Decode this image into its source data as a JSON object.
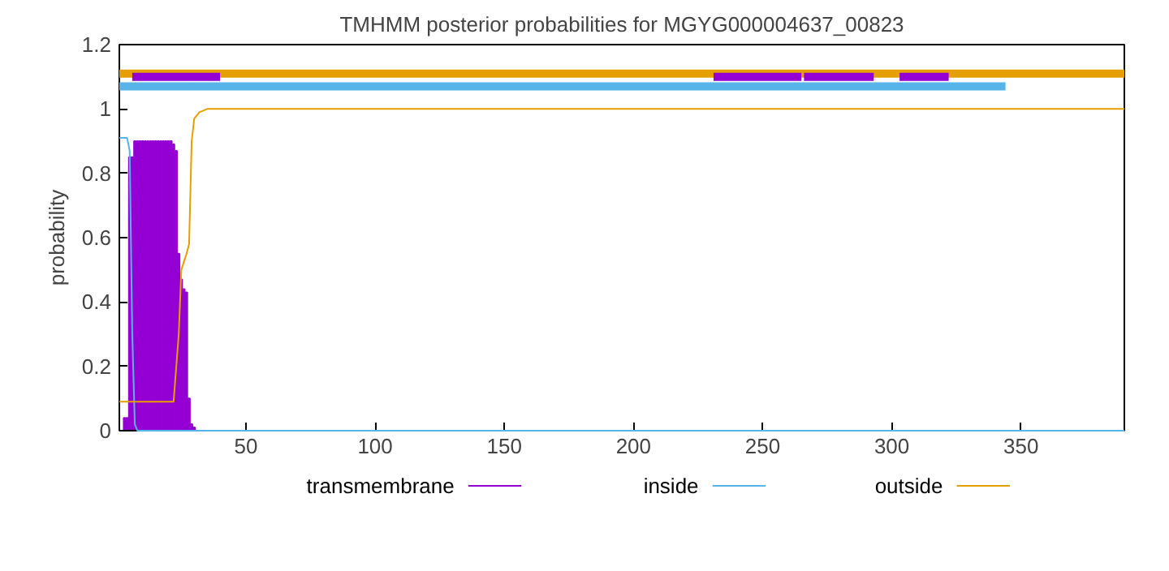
{
  "chart_data": {
    "type": "line",
    "title": "TMHMM posterior probabilities for MGYG000004637_00823",
    "ylabel": "probability",
    "xlim": [
      1,
      390
    ],
    "ylim": [
      0,
      1.2
    ],
    "xticks": [
      50,
      100,
      150,
      200,
      250,
      300,
      350
    ],
    "yticks": [
      0,
      0.2,
      0.4,
      0.6,
      0.8,
      1,
      1.2
    ],
    "legend": "bottom",
    "grid": false,
    "series": [
      {
        "name": "transmembrane",
        "type": "bar",
        "color": "#9400d3",
        "x": [
          3,
          4,
          5,
          6,
          7,
          8,
          9,
          10,
          11,
          12,
          13,
          14,
          15,
          16,
          17,
          18,
          19,
          20,
          21,
          22,
          23,
          24,
          25,
          26,
          27,
          28,
          29,
          30
        ],
        "values": [
          0.04,
          0.04,
          0.85,
          0.85,
          0.9,
          0.9,
          0.9,
          0.9,
          0.9,
          0.9,
          0.9,
          0.9,
          0.9,
          0.9,
          0.9,
          0.9,
          0.9,
          0.9,
          0.9,
          0.89,
          0.87,
          0.55,
          0.47,
          0.44,
          0.43,
          0.1,
          0.02,
          0.01
        ]
      },
      {
        "name": "inside",
        "color": "#56b4e9",
        "x": [
          1,
          4,
          5,
          6,
          7,
          8,
          390
        ],
        "values": [
          0.91,
          0.91,
          0.87,
          0.3,
          0.02,
          0,
          0
        ]
      },
      {
        "name": "outside",
        "color": "#e69f00",
        "x": [
          1,
          22,
          24,
          25,
          27,
          28,
          29,
          30,
          32,
          35,
          390
        ],
        "values": [
          0.09,
          0.09,
          0.3,
          0.5,
          0.55,
          0.58,
          0.9,
          0.97,
          0.99,
          1,
          1
        ]
      },
      {
        "color": "#e69f00",
        "x": [
          1,
          390
        ],
        "values": [
          1.11,
          1.11
        ]
      },
      {
        "color": "#56b4e9",
        "x": [
          1,
          344
        ],
        "values": [
          1.07,
          1.07
        ]
      },
      {
        "color": "#9400d3",
        "x": [
          6,
          28,
          null,
          28,
          40,
          null,
          231,
          265,
          null,
          266,
          293,
          null,
          303,
          322
        ],
        "values": [
          1.1,
          1.1,
          null,
          1.1,
          1.1,
          null,
          1.1,
          1.1,
          null,
          1.1,
          1.1,
          null,
          1.1,
          1.1
        ]
      }
    ]
  }
}
